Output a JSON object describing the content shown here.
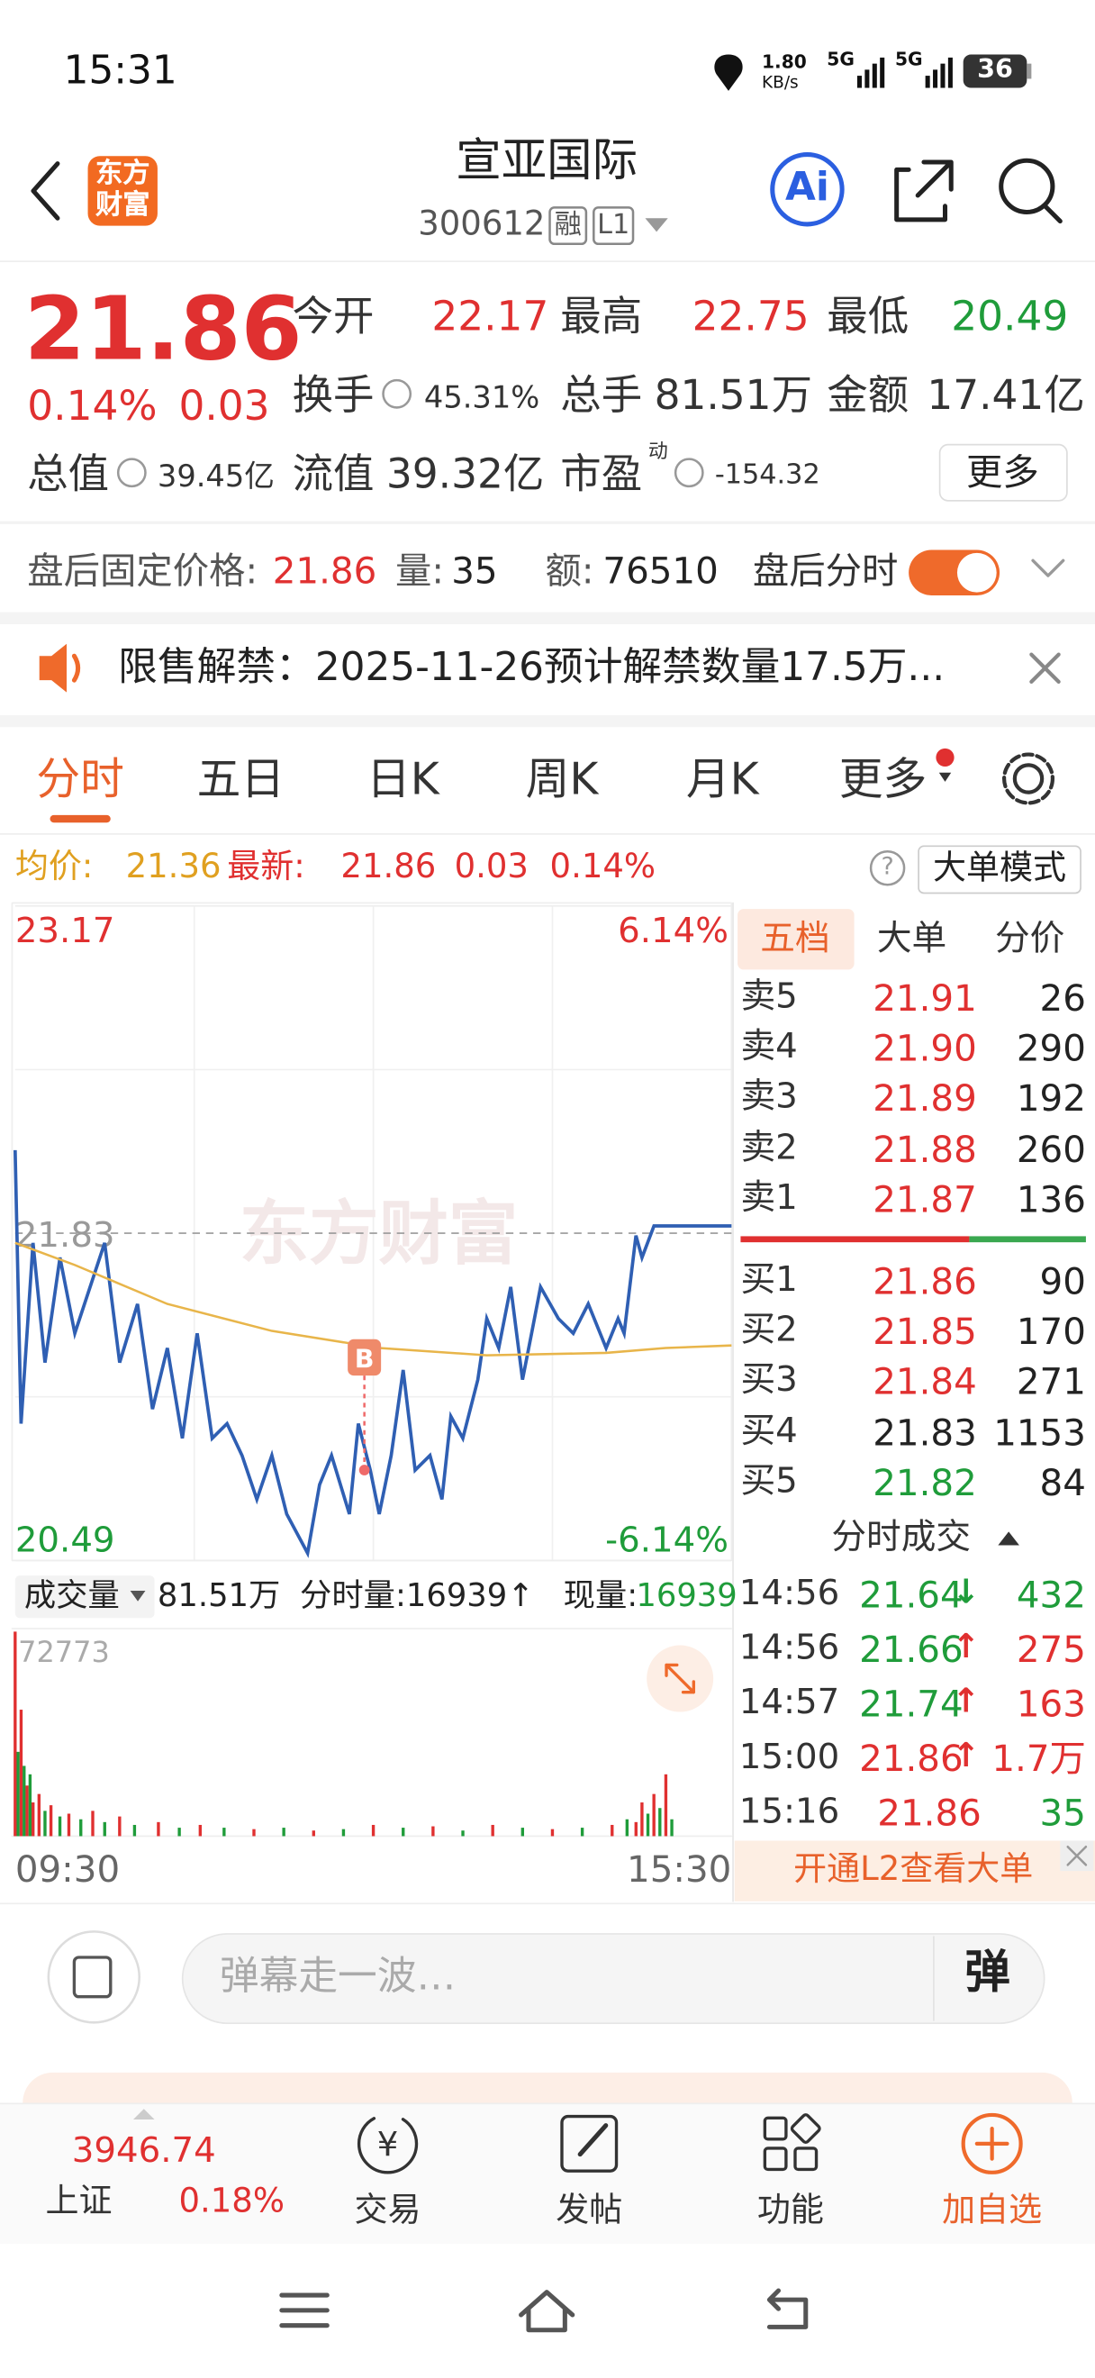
{
  "status_bar": {
    "time": "15:31",
    "net_speed": "1.80",
    "net_unit": "KB/s",
    "sim1": "5G",
    "sim2": "5G",
    "battery": "36"
  },
  "header": {
    "logo_line1": "东方",
    "logo_line2": "财富",
    "title": "宣亚国际",
    "code": "300612",
    "badge1": "融",
    "badge2": "L1",
    "ai": "Ai"
  },
  "quote": {
    "price": "21.86",
    "change_pct": "0.14%",
    "change": "0.03",
    "open_label": "今开",
    "open": "22.17",
    "high_label": "最高",
    "high": "22.75",
    "low_label": "最低",
    "low": "20.49",
    "turnover_label": "换手",
    "turnover": "45.31%",
    "volume_label": "总手",
    "volume": "81.51万",
    "amount_label": "金额",
    "amount": "17.41亿",
    "mcap_label": "总值",
    "mcap": "39.45亿",
    "float_label": "流值",
    "float": "39.32亿",
    "pe_label": "市盈",
    "pe_sup": "动",
    "pe": "-154.32",
    "more": "更多"
  },
  "after_hours": {
    "price_label": "盘后固定价格:",
    "price": "21.86",
    "vol_label": "量:",
    "vol": "35",
    "amt_label": "额:",
    "amt": "76510",
    "toggle_label": "盘后分时"
  },
  "notice": {
    "text": "限售解禁：2025-11-26预计解禁数量17.5万..."
  },
  "tabs": [
    "分时",
    "五日",
    "日K",
    "周K",
    "月K",
    "更多"
  ],
  "info_bar": {
    "avg_label": "均价:",
    "avg": "21.36",
    "last_label": "最新:",
    "last": "21.86",
    "change": "0.03",
    "change_pct": "0.14%",
    "help": "?",
    "mode_button": "大单模式"
  },
  "intraday": {
    "type": "line",
    "ylim": [
      20.49,
      23.17
    ],
    "yticks": [
      23.17,
      21.83,
      20.49
    ],
    "pct_labels": [
      "6.14%",
      "-6.14%"
    ],
    "xlim": [
      0,
      240
    ],
    "xticks": [
      {
        "value": 0,
        "label": "09:30"
      },
      {
        "value": 240,
        "label": "15:30"
      }
    ],
    "watermark": "东方财富",
    "series": [
      {
        "color": "#2f5fb3",
        "x": [
          0,
          2,
          6,
          10,
          15,
          20,
          30,
          35,
          41,
          46,
          51,
          56,
          61,
          66,
          71,
          76,
          81,
          86,
          91,
          98,
          102,
          106,
          112,
          115,
          119,
          122,
          126,
          130,
          134,
          139,
          143,
          146,
          150,
          155,
          158,
          162,
          166,
          170,
          173,
          176,
          182,
          187,
          192,
          198,
          202,
          204,
          208,
          210,
          214,
          240
        ],
        "values": [
          22.17,
          21.05,
          21.79,
          21.3,
          21.73,
          21.42,
          21.79,
          21.3,
          21.54,
          21.11,
          21.36,
          20.99,
          21.42,
          20.99,
          21.05,
          20.92,
          20.74,
          20.92,
          20.68,
          20.52,
          20.8,
          20.92,
          20.68,
          21.05,
          20.86,
          20.68,
          20.92,
          21.27,
          20.86,
          20.92,
          20.74,
          21.08,
          20.99,
          21.23,
          21.48,
          21.36,
          21.61,
          21.23,
          21.42,
          21.61,
          21.48,
          21.42,
          21.54,
          21.36,
          21.48,
          21.42,
          21.82,
          21.73,
          21.86,
          21.86
        ]
      },
      {
        "color": "#e8b54a",
        "x": [
          0,
          20,
          51,
          86,
          122,
          158,
          198,
          218,
          240
        ],
        "values": [
          21.79,
          21.7,
          21.54,
          21.43,
          21.36,
          21.33,
          21.34,
          21.36,
          21.37
        ]
      }
    ],
    "marker": {
      "label": "B",
      "x": 117,
      "value": 20.86
    }
  },
  "volume_bar": {
    "selector": "成交量",
    "total": "81.51万",
    "minute_vol": "分时量:16939↑",
    "now_label": "现量:",
    "now": "16939"
  },
  "volume": {
    "type": "bar",
    "ylim": [
      0,
      72773
    ],
    "yticks": [
      72773
    ],
    "x": [
      0,
      1,
      2,
      3,
      4,
      5,
      6,
      8,
      10,
      12,
      15,
      18,
      22,
      26,
      30,
      35,
      40,
      48,
      55,
      62,
      70,
      80,
      90,
      100,
      110,
      120,
      130,
      140,
      150,
      160,
      170,
      180,
      190,
      200,
      205,
      208,
      210,
      212,
      214,
      216,
      218,
      220
    ],
    "values": [
      72773,
      30000,
      45000,
      25000,
      18000,
      22000,
      12000,
      15000,
      9000,
      11000,
      7000,
      8000,
      6000,
      9000,
      5000,
      7000,
      4000,
      5000,
      3000,
      4000,
      3000,
      2500,
      3000,
      2000,
      2500,
      4000,
      3000,
      3500,
      2000,
      4000,
      3000,
      2500,
      3000,
      4000,
      6000,
      5000,
      12000,
      8000,
      15000,
      10000,
      22000,
      6000
    ],
    "colors": [
      "#e03030",
      "#1f9c3a",
      "#e03030",
      "#1f9c3a",
      "#e03030",
      "#1f9c3a",
      "#e03030",
      "#e03030",
      "#1f9c3a",
      "#e03030",
      "#1f9c3a",
      "#e03030",
      "#1f9c3a",
      "#e03030",
      "#1f9c3a",
      "#e03030",
      "#1f9c3a",
      "#e03030",
      "#1f9c3a",
      "#e03030",
      "#1f9c3a",
      "#e03030",
      "#1f9c3a",
      "#e03030",
      "#1f9c3a",
      "#e03030",
      "#1f9c3a",
      "#e03030",
      "#1f9c3a",
      "#e03030",
      "#1f9c3a",
      "#e03030",
      "#1f9c3a",
      "#e03030",
      "#1f9c3a",
      "#e03030",
      "#e03030",
      "#1f9c3a",
      "#e03030",
      "#1f9c3a",
      "#e03030",
      "#1f9c3a"
    ]
  },
  "order_book": {
    "tabs": [
      "五档",
      "大单",
      "分价"
    ],
    "asks": [
      {
        "label": "卖5",
        "price": "21.91",
        "volume": "26",
        "color": "#e03030"
      },
      {
        "label": "卖4",
        "price": "21.90",
        "volume": "290",
        "color": "#e03030"
      },
      {
        "label": "卖3",
        "price": "21.89",
        "volume": "192",
        "color": "#e03030"
      },
      {
        "label": "卖2",
        "price": "21.88",
        "volume": "260",
        "color": "#e03030"
      },
      {
        "label": "卖1",
        "price": "21.87",
        "volume": "136",
        "color": "#e03030"
      }
    ],
    "bids": [
      {
        "label": "买1",
        "price": "21.86",
        "volume": "90",
        "color": "#e03030"
      },
      {
        "label": "买2",
        "price": "21.85",
        "volume": "170",
        "color": "#e03030"
      },
      {
        "label": "买3",
        "price": "21.84",
        "volume": "271",
        "color": "#e03030"
      },
      {
        "label": "买4",
        "price": "21.83",
        "volume": "1153",
        "color": "#222222"
      },
      {
        "label": "买5",
        "price": "21.82",
        "volume": "84",
        "color": "#1f9c3a"
      }
    ]
  },
  "trades": {
    "title": "分时成交",
    "rows": [
      {
        "time": "14:56",
        "price": "21.64",
        "arrow": "↓",
        "volume": "432",
        "price_color": "#1f9c3a",
        "arrow_color": "#1f9c3a",
        "volume_color": "#1f9c3a"
      },
      {
        "time": "14:56",
        "price": "21.66",
        "arrow": "↑",
        "volume": "275",
        "price_color": "#1f9c3a",
        "arrow_color": "#e03030",
        "volume_color": "#e03030"
      },
      {
        "time": "14:57",
        "price": "21.74",
        "arrow": "↑",
        "volume": "163",
        "price_color": "#1f9c3a",
        "arrow_color": "#e03030",
        "volume_color": "#e03030"
      },
      {
        "time": "15:00",
        "price": "21.86",
        "arrow": "↑",
        "volume": "1.7万",
        "price_color": "#e03030",
        "arrow_color": "#e03030",
        "volume_color": "#e03030"
      },
      {
        "time": "15:16",
        "price": "21.86",
        "volume": "35",
        "price_color": "#e03030",
        "volume_color": "#1f9c3a"
      }
    ]
  },
  "l2_banner": "开通L2查看大单",
  "comment": {
    "placeholder": "弹幕走一波…",
    "button": "弹"
  },
  "bottom_nav": {
    "index_value": "3946.74",
    "index_name": "上证",
    "index_change": "0.18%",
    "items": [
      "交易",
      "发帖",
      "功能",
      "加自选"
    ]
  }
}
